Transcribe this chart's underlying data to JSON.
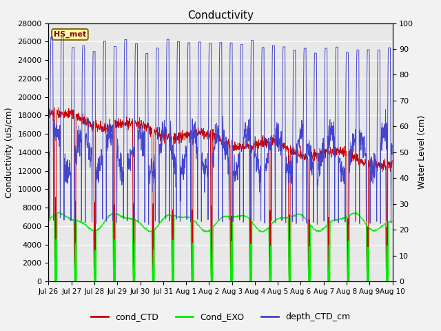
{
  "title": "Conductivity",
  "ylabel_left": "Conductivity (uS/cm)",
  "ylabel_right": "Water Level (cm)",
  "ylim_left": [
    0,
    28000
  ],
  "ylim_right": [
    0,
    100
  ],
  "background_color": "#f2f2f2",
  "plot_bg_color": "#e8e8e8",
  "hs_met_label": "HS_met",
  "legend_labels": [
    "cond_CTD",
    "Cond_EXO",
    "depth_CTD_cm"
  ],
  "line_colors": {
    "cond_CTD": "#cc0000",
    "Cond_EXO": "#00ee00",
    "depth_CTD_cm": "#4444cc"
  },
  "xtick_labels": [
    "Jul 26",
    "Jul 27",
    "Jul 28",
    "Jul 29",
    "Jul 30",
    "Jul 31",
    "Aug 1",
    "Aug 2",
    "Aug 3",
    "Aug 4",
    "Aug 5",
    "Aug 6",
    "Aug 7",
    "Aug 8",
    "Aug 9",
    "Aug 10"
  ],
  "yticks_left": [
    0,
    2000,
    4000,
    6000,
    8000,
    10000,
    12000,
    14000,
    16000,
    18000,
    20000,
    22000,
    24000,
    26000,
    28000
  ],
  "yticks_right": [
    0,
    10,
    20,
    30,
    40,
    50,
    60,
    70,
    80,
    90,
    100
  ],
  "figsize": [
    6.4,
    4.8
  ],
  "dpi": 100
}
